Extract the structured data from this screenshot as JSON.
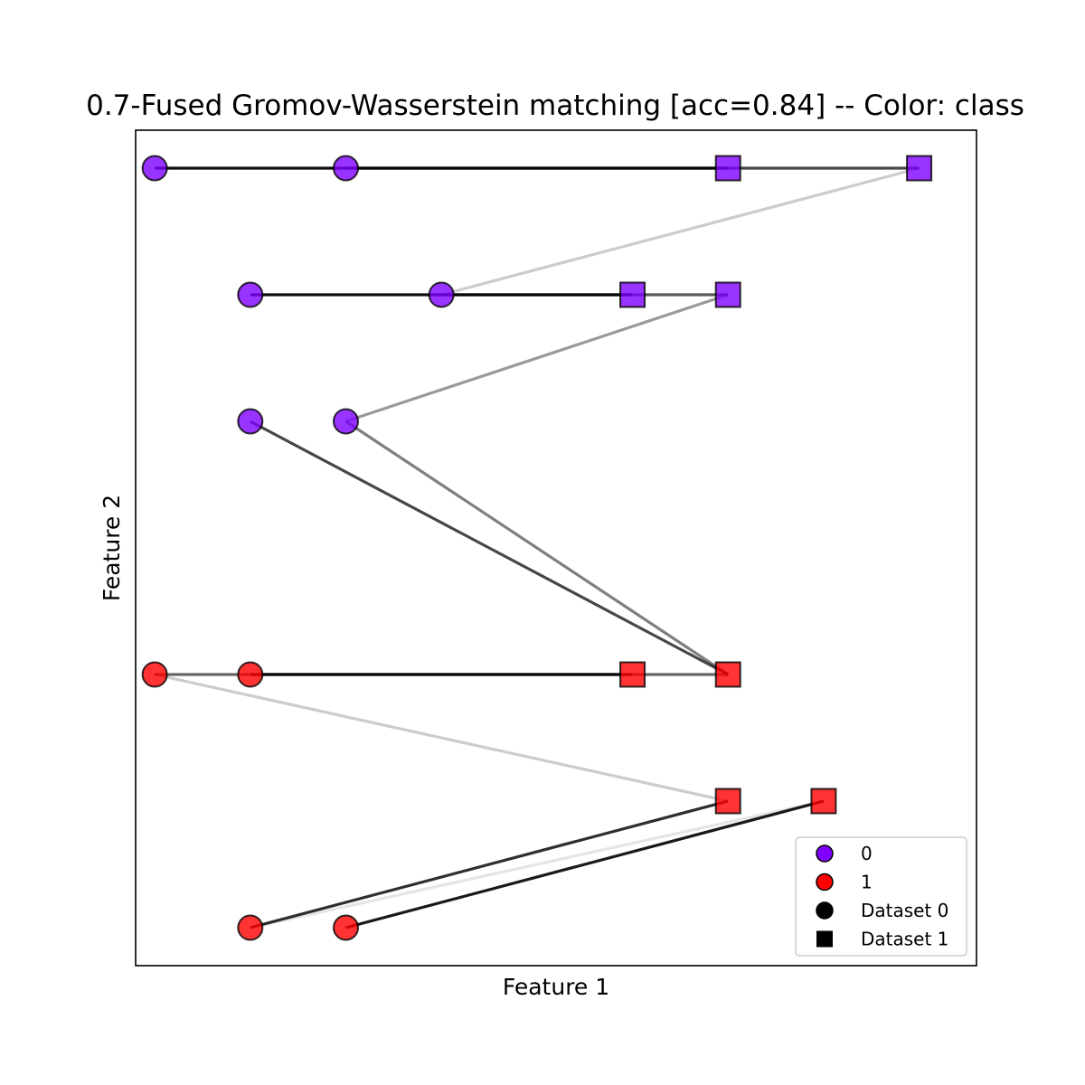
{
  "chart_data": {
    "type": "scatter",
    "title": "0.7-Fused Gromov-Wasserstein matching [acc=0.84] -- Color: class",
    "xlabel": "Feature 1",
    "ylabel": "Feature 2",
    "xlim": [
      -0.2,
      8.6
    ],
    "ylim": [
      -0.3,
      6.3
    ],
    "xticks_visible": false,
    "yticks_visible": false,
    "grid": false,
    "legend_position": "lower right",
    "class_colors": {
      "0": "#7f00ff",
      "1": "#ff0000"
    },
    "legend": [
      {
        "label": "0",
        "marker": "circle",
        "color": "#7f00ff"
      },
      {
        "label": "1",
        "marker": "circle",
        "color": "#ff0000"
      },
      {
        "label": "Dataset 0",
        "marker": "circle",
        "color": "#000000"
      },
      {
        "label": "Dataset 1",
        "marker": "square",
        "color": "#000000"
      }
    ],
    "dataset0": [
      {
        "x": 0,
        "y": 6,
        "class": 0
      },
      {
        "x": 2,
        "y": 6,
        "class": 0
      },
      {
        "x": 1,
        "y": 5,
        "class": 0
      },
      {
        "x": 3,
        "y": 5,
        "class": 0
      },
      {
        "x": 1,
        "y": 4,
        "class": 0
      },
      {
        "x": 2,
        "y": 4,
        "class": 0
      },
      {
        "x": 0,
        "y": 2,
        "class": 1
      },
      {
        "x": 1,
        "y": 2,
        "class": 1
      },
      {
        "x": 1,
        "y": 0,
        "class": 1
      },
      {
        "x": 2,
        "y": 0,
        "class": 1
      }
    ],
    "dataset1": [
      {
        "x": 6,
        "y": 6,
        "class": 0
      },
      {
        "x": 8,
        "y": 6,
        "class": 0
      },
      {
        "x": 5,
        "y": 5,
        "class": 0
      },
      {
        "x": 6,
        "y": 5,
        "class": 0
      },
      {
        "x": 5,
        "y": 2,
        "class": 1
      },
      {
        "x": 6,
        "y": 2,
        "class": 1
      },
      {
        "x": 6,
        "y": 1,
        "class": 1
      },
      {
        "x": 7,
        "y": 1,
        "class": 1
      }
    ],
    "matching": [
      {
        "from": 0,
        "to": 0,
        "weight": 0.95
      },
      {
        "from": 1,
        "to": 1,
        "weight": 0.72
      },
      {
        "from": 3,
        "to": 1,
        "weight": 0.2
      },
      {
        "from": 2,
        "to": 2,
        "weight": 0.95
      },
      {
        "from": 3,
        "to": 3,
        "weight": 0.65
      },
      {
        "from": 5,
        "to": 3,
        "weight": 0.4
      },
      {
        "from": 4,
        "to": 5,
        "weight": 0.72
      },
      {
        "from": 5,
        "to": 5,
        "weight": 0.5
      },
      {
        "from": 7,
        "to": 4,
        "weight": 0.95
      },
      {
        "from": 6,
        "to": 5,
        "weight": 0.6
      },
      {
        "from": 6,
        "to": 6,
        "weight": 0.2
      },
      {
        "from": 8,
        "to": 6,
        "weight": 0.82
      },
      {
        "from": 8,
        "to": 7,
        "weight": 0.1
      },
      {
        "from": 9,
        "to": 7,
        "weight": 0.9
      }
    ]
  }
}
